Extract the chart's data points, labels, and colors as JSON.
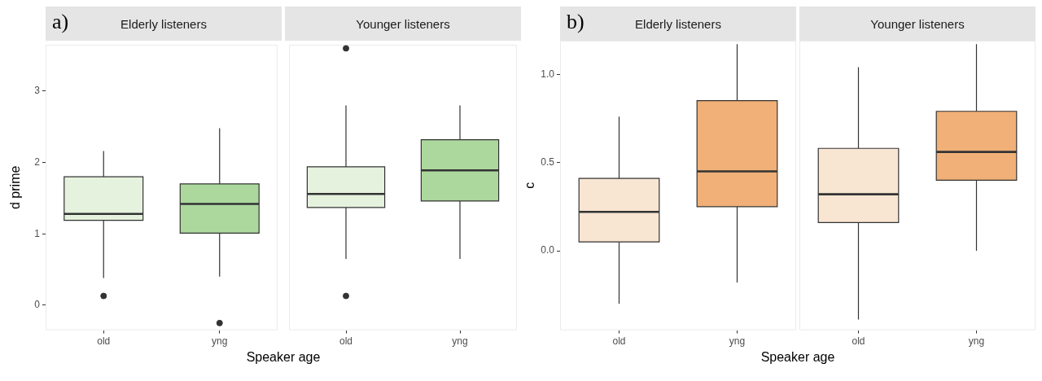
{
  "chart_data": [
    {
      "type": "box",
      "title": "Elderly listeners",
      "xlabel": "Speaker age",
      "ylabel": "d prime",
      "annotations": [
        "a)"
      ],
      "categories": [
        "old",
        "yng"
      ],
      "colors": [
        "#e5f2de",
        "#acd89e"
      ],
      "boxes": [
        {
          "low": 0.38,
          "q1": 1.19,
          "median": 1.28,
          "q3": 1.8,
          "high": 2.16,
          "outliers": [
            0.13
          ]
        },
        {
          "low": 0.4,
          "q1": 1.01,
          "median": 1.42,
          "q3": 1.7,
          "high": 2.48,
          "outliers": [
            -0.25
          ]
        }
      ],
      "ylim": [
        -0.35,
        3.65
      ],
      "yticks": [
        0,
        1,
        2,
        3
      ]
    },
    {
      "type": "box",
      "title": "Younger listeners",
      "categories": [
        "old",
        "yng"
      ],
      "colors": [
        "#e5f2de",
        "#acd89e"
      ],
      "boxes": [
        {
          "low": 0.65,
          "q1": 1.37,
          "median": 1.56,
          "q3": 1.94,
          "high": 2.8,
          "outliers": [
            3.6,
            0.13
          ]
        },
        {
          "low": 0.65,
          "q1": 1.46,
          "median": 1.89,
          "q3": 2.32,
          "high": 2.8
        }
      ],
      "ylim": [
        -0.35,
        3.65
      ],
      "tick_labels": "x"
    },
    {
      "type": "box",
      "title": "Elderly listeners",
      "xlabel": "Speaker age",
      "ylabel": "c",
      "annotations": [
        "b)"
      ],
      "categories": [
        "old",
        "yng"
      ],
      "colors": [
        "#f8e5d2",
        "#f0b077"
      ],
      "boxes": [
        {
          "low": -0.3,
          "q1": 0.05,
          "median": 0.22,
          "q3": 0.41,
          "high": 0.76
        },
        {
          "low": -0.18,
          "q1": 0.25,
          "median": 0.45,
          "q3": 0.85,
          "high": 1.17
        }
      ],
      "ylim": [
        -0.45,
        1.19
      ],
      "yticks": [
        {
          "value": 0,
          "label": "0.0"
        },
        {
          "value": 0.5,
          "label": "0.5"
        },
        {
          "value": 1,
          "label": "1.0"
        }
      ]
    },
    {
      "type": "box",
      "title": "Younger listeners",
      "categories": [
        "old",
        "yng"
      ],
      "colors": [
        "#f8e5d2",
        "#f0b077"
      ],
      "boxes": [
        {
          "low": -0.39,
          "q1": 0.16,
          "median": 0.32,
          "q3": 0.58,
          "high": 1.04
        },
        {
          "low": 0,
          "q1": 0.4,
          "median": 0.56,
          "q3": 0.79,
          "high": 1.17
        }
      ],
      "ylim": [
        -0.45,
        1.19
      ],
      "tick_labels": "x"
    }
  ]
}
